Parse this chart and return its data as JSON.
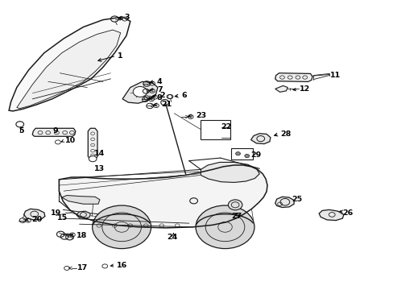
{
  "bg_color": "#ffffff",
  "lc": "#1a1a1a",
  "figsize": [
    4.89,
    3.6
  ],
  "dpi": 100,
  "labels": {
    "1": [
      0.295,
      0.81,
      0.245,
      0.79
    ],
    "2": [
      0.4,
      0.67,
      0.37,
      0.665
    ],
    "3": [
      0.31,
      0.945,
      0.285,
      0.94
    ],
    "4": [
      0.395,
      0.72,
      0.368,
      0.714
    ],
    "5": [
      0.048,
      0.56,
      0.048,
      0.56
    ],
    "6": [
      0.455,
      0.67,
      0.428,
      0.668
    ],
    "7": [
      0.395,
      0.692,
      0.368,
      0.688
    ],
    "8": [
      0.393,
      0.662,
      0.365,
      0.659
    ],
    "9": [
      0.135,
      0.548,
      0.135,
      0.548
    ],
    "10": [
      0.16,
      0.517,
      0.148,
      0.51
    ],
    "11": [
      0.84,
      0.742,
      0.84,
      0.742
    ],
    "12": [
      0.762,
      0.695,
      0.736,
      0.69
    ],
    "13": [
      0.24,
      0.42,
      0.24,
      0.42
    ],
    "14": [
      0.248,
      0.475,
      0.248,
      0.475
    ],
    "15": [
      0.14,
      0.248,
      0.14,
      0.248
    ],
    "16": [
      0.295,
      0.082,
      0.27,
      0.08
    ],
    "17": [
      0.194,
      0.072,
      0.194,
      0.072
    ],
    "18": [
      0.188,
      0.185,
      0.165,
      0.188
    ],
    "19": [
      0.122,
      0.265,
      0.122,
      0.265
    ],
    "20": [
      0.075,
      0.24,
      0.052,
      0.238
    ],
    "21": [
      0.405,
      0.64,
      0.378,
      0.637
    ],
    "22": [
      0.56,
      0.565,
      0.56,
      0.565
    ],
    "23": [
      0.495,
      0.6,
      0.468,
      0.597
    ],
    "24": [
      0.435,
      0.182,
      0.435,
      0.182
    ],
    "25": [
      0.74,
      0.31,
      0.74,
      0.31
    ],
    "26": [
      0.87,
      0.265,
      0.87,
      0.265
    ],
    "27": [
      0.6,
      0.255,
      0.6,
      0.255
    ],
    "28": [
      0.71,
      0.538,
      0.686,
      0.53
    ],
    "29": [
      0.635,
      0.468,
      0.635,
      0.468
    ]
  }
}
